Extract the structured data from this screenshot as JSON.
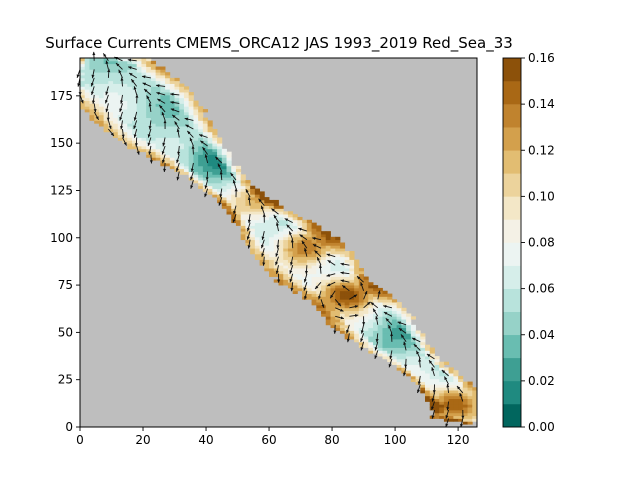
{
  "chart_data": {
    "type": "heatmap",
    "title": "Surface Currents CMEMS_ORCA12 JAS 1993_2019 Red_Sea_33",
    "xlabel": "",
    "ylabel": "",
    "xlim": [
      0,
      126
    ],
    "ylim": [
      0,
      195
    ],
    "x_ticks": [
      0,
      20,
      40,
      60,
      80,
      100,
      120
    ],
    "y_ticks": [
      0,
      25,
      50,
      75,
      100,
      125,
      150,
      175
    ],
    "land_color": "#bebebe",
    "colorbar": {
      "range": [
        0.0,
        0.16
      ],
      "step": 0.01,
      "ticks": [
        "0.00",
        "0.02",
        "0.04",
        "0.06",
        "0.08",
        "0.10",
        "0.12",
        "0.14",
        "0.16"
      ],
      "colors": [
        "#01665e",
        "#1f8a80",
        "#3e9f93",
        "#69bdb1",
        "#96d2c8",
        "#b8e3dc",
        "#d6eeea",
        "#ecf4f2",
        "#f4f1e6",
        "#f3e7c7",
        "#ecd39c",
        "#e2bd72",
        "#d3a04c",
        "#c0832e",
        "#a96815",
        "#8c510a"
      ]
    },
    "field": {
      "description_of_values": "Surface current speed (colorbar units); arrows show current direction",
      "basin_axis_start": [
        2,
        195
      ],
      "basin_axis_end": [
        126,
        3
      ],
      "narrows_at_y": 72,
      "highlights": [
        {
          "x": 84,
          "y": 70,
          "value": 0.16,
          "feature": "eddy"
        },
        {
          "x": 58,
          "y": 120,
          "value": 0.13,
          "feature": "boundary jet"
        },
        {
          "x": 72,
          "y": 95,
          "value": 0.14,
          "feature": "boundary jet"
        },
        {
          "x": 118,
          "y": 12,
          "value": 0.15,
          "feature": "boundary current"
        },
        {
          "x": 40,
          "y": 140,
          "value": 0.03,
          "feature": "interior"
        },
        {
          "x": 100,
          "y": 45,
          "value": 0.04,
          "feature": "interior"
        }
      ]
    }
  }
}
